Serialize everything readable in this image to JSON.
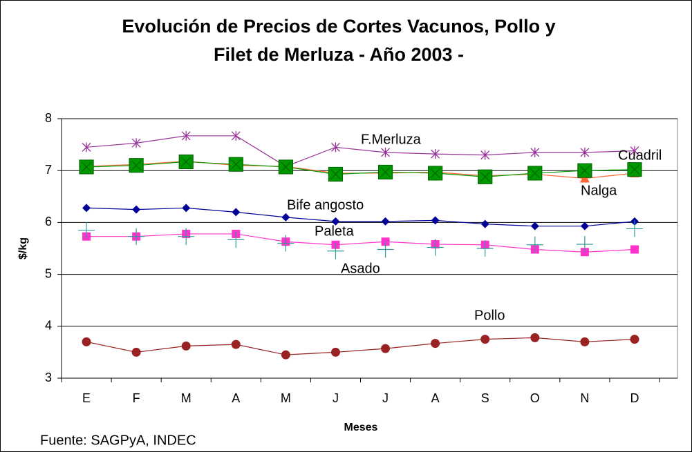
{
  "chart_data": {
    "type": "line",
    "title": [
      "Evolución de Precios de Cortes Vacunos, Pollo y",
      "Filet de Merluza - Año 2003 -"
    ],
    "x_label": "Meses",
    "y_label": "$/kg",
    "source": "Fuente: SAGPyA, INDEC",
    "categories": [
      "E",
      "F",
      "M",
      "A",
      "M",
      "J",
      "J",
      "A",
      "S",
      "O",
      "N",
      "D"
    ],
    "ylim": [
      3,
      8
    ],
    "yticks": [
      3,
      4,
      5,
      6,
      7,
      8
    ],
    "grid": true,
    "series": [
      {
        "name": "F.Merluza",
        "color": "#993399",
        "marker": "asterisk",
        "values": [
          7.45,
          7.53,
          7.67,
          7.67,
          7.08,
          7.45,
          7.35,
          7.32,
          7.3,
          7.35,
          7.35,
          7.38
        ]
      },
      {
        "name": "Nalga",
        "color": "#ff6633",
        "marker": "triangle",
        "values": [
          7.08,
          7.12,
          7.18,
          7.1,
          7.08,
          6.95,
          6.95,
          6.97,
          6.9,
          6.93,
          6.85,
          6.95
        ]
      },
      {
        "name": "Cuadril",
        "color": "#009900",
        "marker": "square-x",
        "values": [
          7.07,
          7.1,
          7.17,
          7.12,
          7.07,
          6.93,
          6.97,
          6.95,
          6.88,
          6.95,
          7.0,
          7.02
        ]
      },
      {
        "name": "Bife angosto",
        "color": "#000099",
        "marker": "diamond",
        "values": [
          6.28,
          6.25,
          6.28,
          6.2,
          6.1,
          6.02,
          6.02,
          6.04,
          5.97,
          5.93,
          5.93,
          6.02
        ]
      },
      {
        "name": "Paleta",
        "color": "#ff33cc",
        "marker": "square",
        "values": [
          5.73,
          5.73,
          5.78,
          5.78,
          5.63,
          5.57,
          5.63,
          5.58,
          5.57,
          5.48,
          5.43,
          5.48
        ]
      },
      {
        "name": "Asado",
        "color": "#339999",
        "marker": "plus",
        "line": false,
        "values": [
          5.85,
          5.73,
          5.73,
          5.67,
          5.6,
          5.45,
          5.48,
          5.52,
          5.5,
          5.57,
          5.58,
          5.88
        ]
      },
      {
        "name": "Pollo",
        "color": "#992222",
        "marker": "circle",
        "values": [
          3.7,
          3.5,
          3.62,
          3.65,
          3.45,
          3.5,
          3.57,
          3.67,
          3.75,
          3.78,
          3.7,
          3.75
        ]
      }
    ]
  }
}
